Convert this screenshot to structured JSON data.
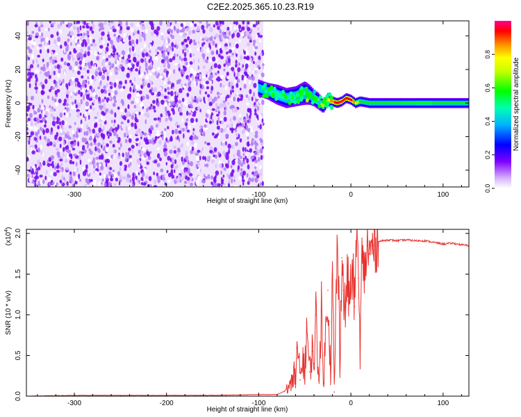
{
  "title": "C2E2.2025.365.10.23.R19",
  "chart_data": [
    {
      "type": "heatmap",
      "name": "spectrogram",
      "xlabel": "Height of straight line (km)",
      "ylabel": "Frequency (Hz)",
      "xlim": [
        -352,
        128
      ],
      "ylim": [
        -50,
        49
      ],
      "x_ticks": [
        -300,
        -200,
        -100,
        0,
        100
      ],
      "x_tick_labels": [
        "-300",
        "-200",
        "-100",
        "0",
        "100"
      ],
      "y_ticks": [
        -40,
        -20,
        0,
        20,
        40
      ],
      "y_tick_labels": [
        "-40",
        "-20",
        "0",
        "20",
        "40"
      ],
      "noise_region_x": [
        -352,
        -95
      ],
      "signal_track": {
        "x": [
          -100,
          -90,
          -80,
          -70,
          -60,
          -50,
          -45,
          -40,
          -35,
          -30,
          -25,
          -20,
          -15,
          -10,
          -5,
          0,
          5,
          10,
          20,
          40,
          60,
          80,
          100,
          128
        ],
        "frequency": [
          9,
          7,
          5,
          3,
          4,
          6,
          5,
          3,
          1,
          -2,
          2,
          1,
          0,
          1,
          3,
          2,
          0,
          1,
          0,
          0,
          0,
          0,
          0,
          0
        ],
        "width_hz": [
          5,
          5,
          6,
          6,
          6,
          7,
          6,
          5,
          5,
          4,
          4,
          3,
          3,
          3,
          3,
          3,
          3,
          3,
          3,
          3,
          3,
          3,
          3,
          3
        ],
        "normalized_peak": [
          0.35,
          0.4,
          0.45,
          0.48,
          0.5,
          0.52,
          0.5,
          0.55,
          0.6,
          0.62,
          0.7,
          0.85,
          0.9,
          0.92,
          0.88,
          0.95,
          0.7,
          0.55,
          0.5,
          0.5,
          0.5,
          0.5,
          0.5,
          0.5
        ]
      },
      "colorbar": {
        "label": "Normalized spectral amplitude",
        "range": [
          0.0,
          1.0
        ],
        "ticks": [
          0.0,
          0.2,
          0.4,
          0.6,
          0.8
        ],
        "tick_labels": [
          "0.0",
          "0.2",
          "0.4",
          "0.6",
          "0.8"
        ],
        "colors": [
          "#ffffff",
          "#c8a0f8",
          "#7b00ff",
          "#0000ff",
          "#00c8ff",
          "#00ffa0",
          "#00ff00",
          "#b4ff00",
          "#ffff00",
          "#ff8c00",
          "#ff0000",
          "#ff0080"
        ]
      }
    },
    {
      "type": "line",
      "name": "snr",
      "xlabel": "Height of straight line (km)",
      "ylabel": "SNR (10 * v/v)",
      "multiplier_label": "(x10",
      "multiplier_exponent": "4",
      "multiplier_close": ")",
      "xlim": [
        -352,
        128
      ],
      "ylim": [
        0.0,
        2.05
      ],
      "x_ticks": [
        -300,
        -200,
        -100,
        0,
        100
      ],
      "x_tick_labels": [
        "-300",
        "-200",
        "-100",
        "0",
        "100"
      ],
      "y_ticks": [
        0.0,
        0.5,
        1.0,
        1.5,
        2.0
      ],
      "y_tick_labels": [
        "0.0",
        "0.5",
        "1.0",
        "1.5",
        "2.0"
      ],
      "series": [
        {
          "name": "SNR",
          "color": "#e8322e",
          "x": [
            -352,
            -300,
            -250,
            -200,
            -150,
            -100,
            -80,
            -72,
            -68,
            -65,
            -62,
            -60,
            -58,
            -55,
            -52,
            -50,
            -48,
            -45,
            -42,
            -40,
            -38,
            -35,
            -32,
            -30,
            -28,
            -25,
            -22,
            -20,
            -18,
            -15,
            -13,
            -12,
            -10,
            -8,
            -6,
            -4,
            -2,
            0,
            2,
            4,
            6,
            8,
            10,
            12,
            14,
            16,
            18,
            20,
            25,
            30,
            40,
            50,
            60,
            70,
            80,
            90,
            100,
            110,
            120,
            128
          ],
          "values": [
            0.0,
            0.01,
            0.01,
            0.01,
            0.01,
            0.02,
            0.02,
            0.06,
            0.12,
            0.08,
            0.35,
            0.15,
            0.6,
            0.2,
            0.5,
            0.25,
            0.9,
            0.3,
            0.55,
            0.4,
            1.0,
            0.2,
            1.05,
            0.15,
            0.6,
            1.3,
            0.3,
            1.5,
            0.05,
            1.8,
            1.2,
            0.4,
            1.7,
            1.3,
            1.0,
            1.5,
            1.2,
            1.35,
            1.5,
            1.1,
            2.05,
            1.45,
            0.6,
            1.7,
            1.5,
            1.65,
            1.85,
            1.75,
            1.85,
            1.9,
            1.92,
            1.91,
            1.92,
            1.91,
            1.91,
            1.89,
            1.87,
            1.88,
            1.86,
            1.85
          ]
        }
      ]
    }
  ]
}
